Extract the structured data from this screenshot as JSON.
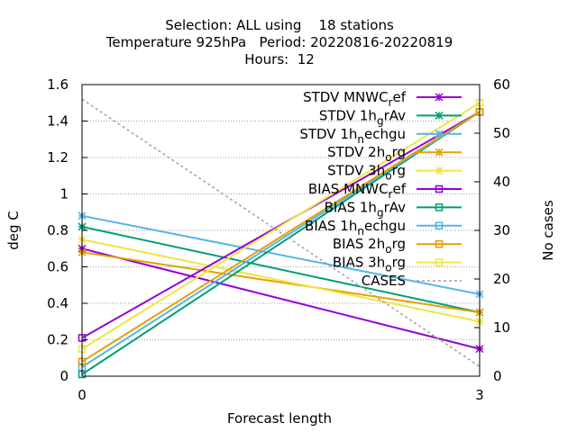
{
  "chart_data": {
    "type": "line",
    "title_lines": [
      "Selection: ALL using    18 stations",
      "Temperature 925hPa   Period: 20220816-20220819",
      "Hours:  12"
    ],
    "xlabel": "Forecast length",
    "ylabel": "deg C",
    "y2label": "No cases",
    "x": [
      0,
      3
    ],
    "xlim": [
      0,
      3
    ],
    "ylim": [
      0,
      1.6
    ],
    "y2lim": [
      0,
      60
    ],
    "xticks": [
      "0",
      "3"
    ],
    "yticks": [
      "0",
      "0.2",
      "0.4",
      "0.6",
      "0.8",
      "1",
      "1.2",
      "1.4",
      "1.6"
    ],
    "y2ticks": [
      "0",
      "10",
      "20",
      "30",
      "40",
      "50",
      "60"
    ],
    "grid": true,
    "legend_position": "top-right",
    "series": [
      {
        "name": "STDV MNWC_ref",
        "label_main": "STDV MNWC",
        "label_sub": "r",
        "label_tail": "ef",
        "color": "#9400d3",
        "marker": "star",
        "axis": "y",
        "values": [
          0.7,
          0.15
        ]
      },
      {
        "name": "STDV 1h_grAv",
        "label_main": "STDV 1h",
        "label_sub": "g",
        "label_tail": "rAv",
        "color": "#009e73",
        "marker": "star",
        "axis": "y",
        "values": [
          0.82,
          0.35
        ]
      },
      {
        "name": "STDV 1h_nechgu",
        "label_main": "STDV 1h",
        "label_sub": "n",
        "label_tail": "echgu",
        "color": "#56b4e9",
        "marker": "star",
        "axis": "y",
        "values": [
          0.88,
          0.45
        ]
      },
      {
        "name": "STDV 2h_org",
        "label_main": "STDV 2h",
        "label_sub": "o",
        "label_tail": "rg",
        "color": "#e69f00",
        "marker": "star",
        "axis": "y",
        "values": [
          0.68,
          0.35
        ]
      },
      {
        "name": "STDV 3h_org",
        "label_main": "STDV 3h",
        "label_sub": "o",
        "label_tail": "rg",
        "color": "#f0e442",
        "marker": "star",
        "axis": "y",
        "values": [
          0.75,
          0.3
        ]
      },
      {
        "name": "BIAS MNWC_ref",
        "label_main": "BIAS MNWC",
        "label_sub": "r",
        "label_tail": "ef",
        "color": "#9400d3",
        "marker": "square",
        "axis": "y",
        "values": [
          0.21,
          1.45
        ]
      },
      {
        "name": "BIAS 1h_grAv",
        "label_main": "BIAS 1h",
        "label_sub": "g",
        "label_tail": "rAv",
        "color": "#009e73",
        "marker": "square",
        "axis": "y",
        "values": [
          0.01,
          1.45
        ]
      },
      {
        "name": "BIAS 1h_nechgu",
        "label_main": "BIAS 1h",
        "label_sub": "n",
        "label_tail": "echgu",
        "color": "#56b4e9",
        "marker": "square",
        "axis": "y",
        "values": [
          0.05,
          1.45
        ]
      },
      {
        "name": "BIAS 2h_org",
        "label_main": "BIAS 2h",
        "label_sub": "o",
        "label_tail": "rg",
        "color": "#e69f00",
        "marker": "square",
        "axis": "y",
        "values": [
          0.08,
          1.45
        ]
      },
      {
        "name": "BIAS 3h_org",
        "label_main": "BIAS 3h",
        "label_sub": "o",
        "label_tail": "rg",
        "color": "#f0e442",
        "marker": "square",
        "axis": "y",
        "values": [
          0.15,
          1.5
        ]
      },
      {
        "name": "CASES",
        "label_main": "CASES",
        "label_sub": "",
        "label_tail": "",
        "color": "#a0a0a0",
        "marker": "none",
        "dashed": true,
        "axis": "y2",
        "values": [
          57,
          2
        ]
      }
    ]
  }
}
